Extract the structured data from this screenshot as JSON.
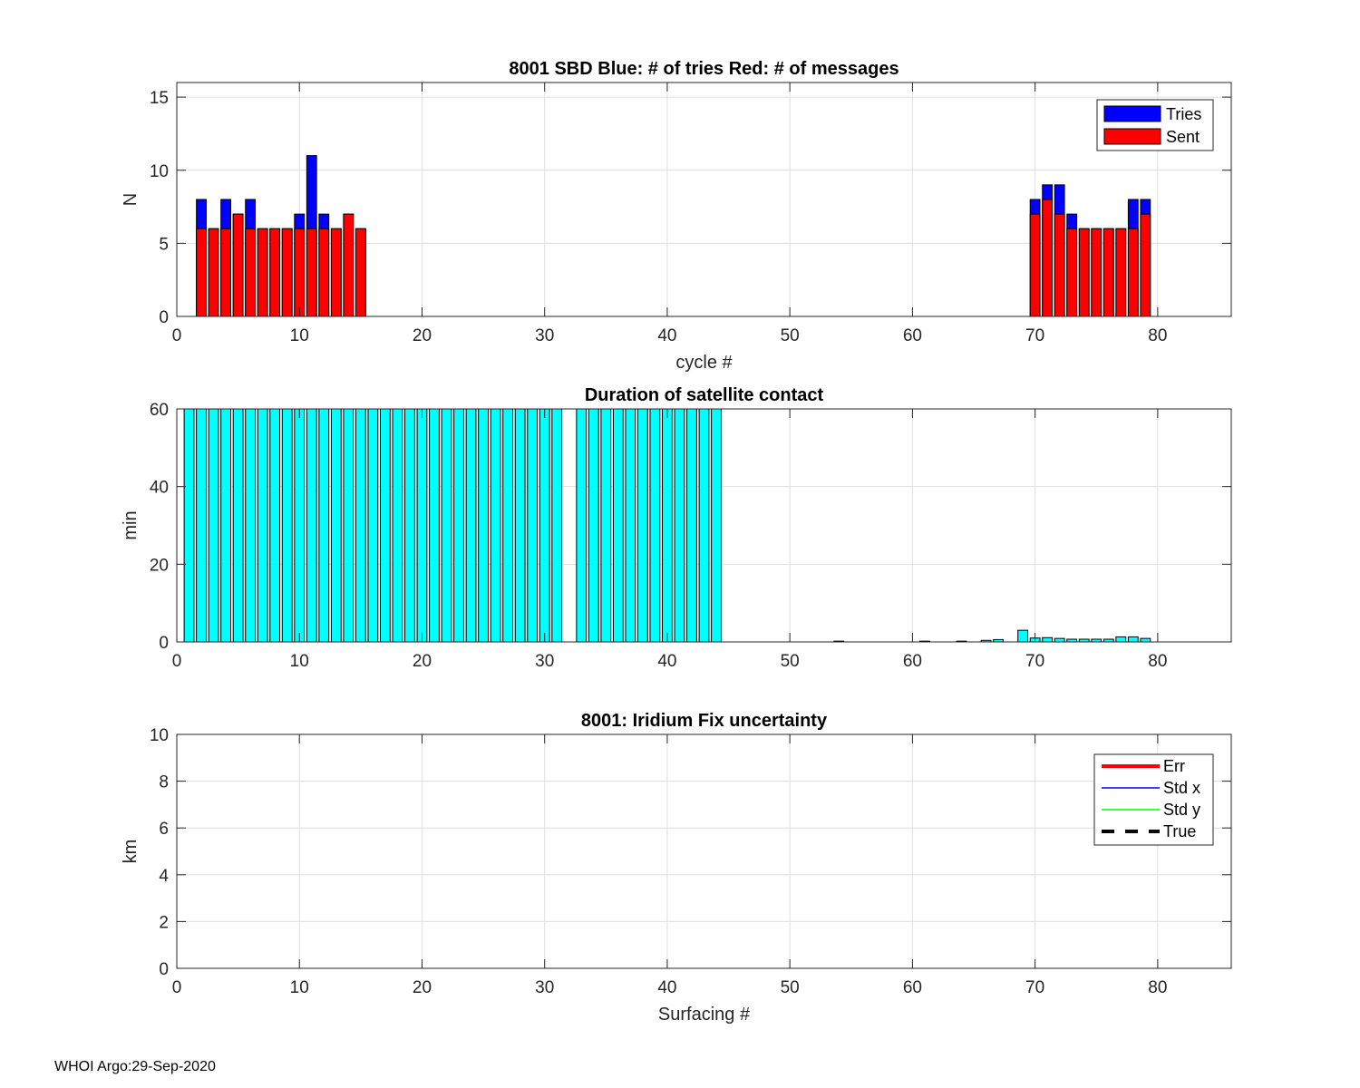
{
  "footer": "WHOI Argo:29-Sep-2020",
  "chart_data": [
    {
      "type": "bar",
      "title": "8001 SBD  Blue: # of tries   Red: # of messages",
      "xlabel": "cycle #",
      "ylabel": "N",
      "xlim": [
        0,
        86
      ],
      "ylim": [
        0,
        16
      ],
      "xticks": [
        0,
        10,
        20,
        30,
        40,
        50,
        60,
        70,
        80
      ],
      "yticks": [
        0,
        5,
        10,
        15
      ],
      "grid": true,
      "legend_position": "top-right",
      "series": [
        {
          "name": "Tries",
          "color": "#0000ff",
          "x": [
            2,
            3,
            4,
            5,
            6,
            7,
            8,
            9,
            10,
            11,
            12,
            13,
            14,
            15,
            70,
            71,
            72,
            73,
            74,
            75,
            76,
            77,
            78,
            79
          ],
          "values": [
            8,
            6,
            8,
            7,
            8,
            6,
            6,
            6,
            7,
            11,
            7,
            6,
            7,
            6,
            8,
            9,
            9,
            7,
            6,
            6,
            6,
            6,
            8,
            8
          ]
        },
        {
          "name": "Sent",
          "color": "#ff0000",
          "x": [
            2,
            3,
            4,
            5,
            6,
            7,
            8,
            9,
            10,
            11,
            12,
            13,
            14,
            15,
            70,
            71,
            72,
            73,
            74,
            75,
            76,
            77,
            78,
            79
          ],
          "values": [
            6,
            6,
            6,
            7,
            6,
            6,
            6,
            6,
            6,
            6,
            6,
            6,
            7,
            6,
            7,
            8,
            7,
            6,
            6,
            6,
            6,
            6,
            6,
            7
          ]
        }
      ]
    },
    {
      "type": "bar",
      "title": "Duration of satellite contact",
      "xlabel": "",
      "ylabel": "min",
      "xlim": [
        0,
        86
      ],
      "ylim": [
        0,
        60
      ],
      "xticks": [
        0,
        10,
        20,
        30,
        40,
        50,
        60,
        70,
        80
      ],
      "yticks": [
        0,
        20,
        40,
        60
      ],
      "grid": true,
      "series": [
        {
          "name": "Duration",
          "color": "#00ffff",
          "x": [
            1,
            2,
            3,
            4,
            5,
            6,
            7,
            8,
            9,
            10,
            11,
            12,
            13,
            14,
            15,
            16,
            17,
            18,
            19,
            20,
            21,
            22,
            23,
            24,
            25,
            26,
            27,
            28,
            29,
            30,
            31,
            33,
            34,
            35,
            36,
            37,
            38,
            39,
            40,
            41,
            42,
            43,
            44,
            54,
            61,
            64,
            66,
            67,
            69,
            70,
            71,
            72,
            73,
            74,
            75,
            76,
            77,
            78,
            79
          ],
          "values": [
            60,
            60,
            60,
            60,
            60,
            60,
            60,
            60,
            60,
            60,
            60,
            60,
            60,
            60,
            60,
            60,
            60,
            60,
            60,
            60,
            60,
            60,
            60,
            60,
            60,
            60,
            60,
            60,
            60,
            60,
            60,
            60,
            60,
            60,
            60,
            60,
            60,
            60,
            60,
            60,
            60,
            60,
            60,
            0.2,
            0.2,
            0.2,
            0.4,
            0.6,
            3,
            1,
            1.1,
            0.9,
            0.7,
            0.7,
            0.7,
            0.7,
            1.3,
            1.3,
            0.9
          ]
        }
      ]
    },
    {
      "type": "line",
      "title": "8001: Iridium Fix uncertainty",
      "xlabel": "Surfacing #",
      "ylabel": "km",
      "xlim": [
        0,
        86
      ],
      "ylim": [
        0,
        10
      ],
      "xticks": [
        0,
        10,
        20,
        30,
        40,
        50,
        60,
        70,
        80
      ],
      "yticks": [
        0,
        2,
        4,
        6,
        8,
        10
      ],
      "grid": true,
      "legend_position": "top-right",
      "series": [
        {
          "name": "Err",
          "color": "#ff0000",
          "style": "solid-thick",
          "x": [],
          "values": []
        },
        {
          "name": "Std x",
          "color": "#0000ff",
          "style": "solid",
          "x": [],
          "values": []
        },
        {
          "name": "Std y",
          "color": "#00ff00",
          "style": "solid",
          "x": [],
          "values": []
        },
        {
          "name": "True",
          "color": "#000000",
          "style": "dashed",
          "x": [],
          "values": []
        }
      ]
    }
  ]
}
